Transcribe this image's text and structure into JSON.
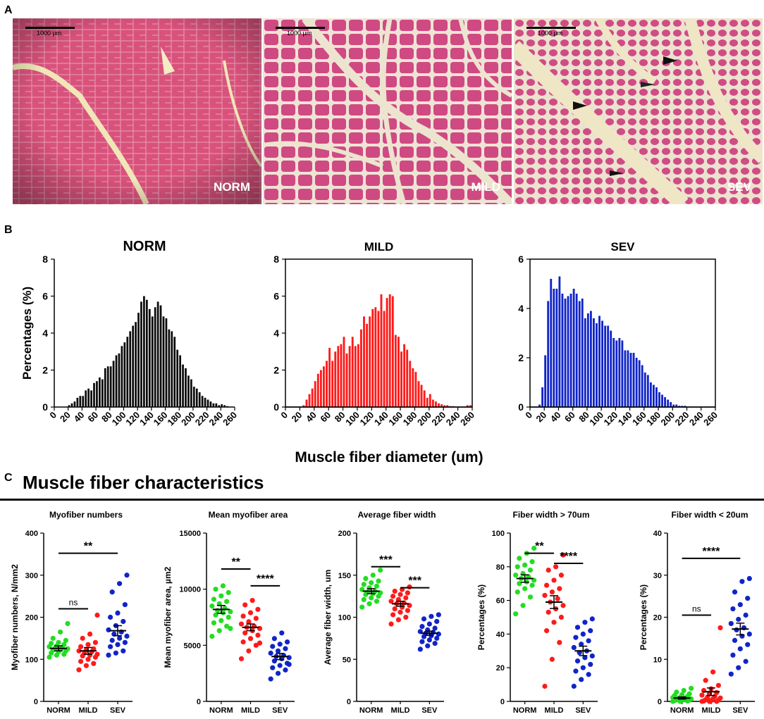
{
  "panel_a": {
    "letter": "A",
    "images": [
      {
        "label": "NORM",
        "scale": "1000 µm"
      },
      {
        "label": "MILD",
        "scale": "1000 µm"
      },
      {
        "label": "SEV",
        "scale": "1000 µm"
      }
    ]
  },
  "panel_b": {
    "letter": "B"
  },
  "panel_c": {
    "letter": "C",
    "title": "Muscle fiber characteristics"
  },
  "colors": {
    "norm": "#0b0b0b",
    "mild": "#ff1a1a",
    "sev": "#1024c8",
    "green": "#22dd22"
  },
  "chart_data": [
    {
      "type": "bar",
      "title": "NORM",
      "ylabel": "Percentages (%)",
      "xlabel": "Muscle fiber diameter (um)",
      "xlim": [
        0,
        260
      ],
      "ylim": [
        0,
        8
      ],
      "yticks": [
        0,
        2,
        4,
        6,
        8
      ],
      "xticks": [
        0,
        20,
        40,
        60,
        80,
        100,
        120,
        140,
        160,
        180,
        200,
        220,
        240,
        260
      ],
      "bin_width": 4,
      "bin_start": 20,
      "values": [
        0.1,
        0.2,
        0.3,
        0.5,
        0.6,
        0.6,
        0.9,
        1.0,
        0.9,
        1.3,
        1.4,
        1.6,
        1.5,
        2.1,
        2.2,
        2.2,
        2.5,
        2.8,
        2.9,
        3.3,
        3.5,
        3.8,
        4.1,
        4.4,
        4.6,
        5.1,
        5.7,
        6.0,
        5.8,
        5.3,
        4.9,
        5.4,
        5.7,
        5.5,
        4.9,
        4.8,
        4.2,
        4.1,
        3.8,
        3.1,
        2.8,
        2.3,
        2.1,
        1.7,
        1.5,
        1.1,
        1.0,
        0.8,
        0.6,
        0.5,
        0.4,
        0.3,
        0.2,
        0.2,
        0.1,
        0.15,
        0.1,
        0.05
      ]
    },
    {
      "type": "bar",
      "title": "MILD",
      "xlim": [
        0,
        260
      ],
      "ylim": [
        0,
        8
      ],
      "yticks": [
        0,
        2,
        4,
        6,
        8
      ],
      "xticks": [
        0,
        20,
        40,
        60,
        80,
        100,
        120,
        140,
        160,
        180,
        200,
        220,
        240,
        260
      ],
      "bin_width": 4,
      "bin_start": 24,
      "values": [
        0.1,
        0.4,
        0.7,
        1.0,
        1.4,
        1.8,
        2.0,
        2.2,
        2.5,
        3.2,
        2.5,
        3.0,
        3.3,
        3.4,
        3.8,
        2.9,
        3.3,
        3.8,
        3.3,
        3.4,
        4.2,
        4.9,
        4.5,
        4.9,
        5.3,
        5.4,
        5.2,
        6.1,
        5.2,
        5.9,
        6.1,
        6.0,
        3.9,
        3.8,
        3.0,
        3.4,
        3.1,
        2.5,
        2.1,
        1.9,
        1.4,
        1.2,
        0.9,
        0.5,
        0.7,
        0.4,
        0.3,
        0.2,
        0.15,
        0.1,
        0.1,
        0.05,
        0.05,
        0.0,
        0.0,
        0.0,
        0.0,
        0.1,
        0.1
      ]
    },
    {
      "type": "bar",
      "title": "SEV",
      "xlim": [
        0,
        260
      ],
      "ylim": [
        0,
        6
      ],
      "yticks": [
        0,
        2,
        4,
        6
      ],
      "xticks": [
        0,
        20,
        40,
        60,
        80,
        100,
        120,
        140,
        160,
        180,
        200,
        220,
        240,
        260
      ],
      "bin_width": 4,
      "bin_start": 12,
      "values": [
        0.1,
        0.8,
        2.1,
        4.3,
        5.2,
        4.8,
        4.8,
        5.3,
        4.6,
        4.4,
        4.5,
        4.6,
        4.8,
        4.6,
        4.3,
        4.4,
        3.6,
        3.8,
        3.9,
        3.6,
        3.4,
        3.7,
        3.5,
        3.3,
        3.3,
        3.1,
        2.8,
        2.7,
        2.8,
        2.7,
        2.3,
        2.3,
        2.2,
        2.2,
        2.0,
        1.9,
        1.7,
        1.4,
        1.3,
        1.0,
        0.9,
        0.8,
        0.6,
        0.5,
        0.4,
        0.3,
        0.2,
        0.1,
        0.1,
        0.05,
        0.05,
        0.05
      ]
    },
    {
      "type": "scatter",
      "title": "Myofiber numbers",
      "ylabel": "Myofiber numbers, N/mm2",
      "categories": [
        "NORM",
        "MILD",
        "SEV"
      ],
      "ylim": [
        0,
        400
      ],
      "yticks": [
        0,
        100,
        200,
        300,
        400
      ],
      "series": [
        {
          "name": "NORM",
          "mean": 126,
          "sem": 6,
          "values": [
            105,
            110,
            112,
            115,
            118,
            120,
            122,
            124,
            125,
            126,
            128,
            130,
            132,
            135,
            138,
            140,
            145,
            150,
            165,
            185
          ]
        },
        {
          "name": "MILD",
          "mean": 120,
          "sem": 8,
          "values": [
            75,
            85,
            90,
            95,
            100,
            105,
            108,
            110,
            112,
            115,
            118,
            120,
            122,
            125,
            130,
            135,
            140,
            150,
            160,
            205
          ]
        },
        {
          "name": "SEV",
          "mean": 168,
          "sem": 12,
          "values": [
            110,
            115,
            120,
            130,
            135,
            140,
            145,
            150,
            155,
            160,
            165,
            170,
            180,
            190,
            200,
            210,
            230,
            260,
            280,
            300
          ]
        }
      ],
      "annotations": [
        {
          "text": "**",
          "from": 0,
          "to": 2,
          "y": 352
        },
        {
          "text": "ns",
          "from": 0,
          "to": 1,
          "y": 220
        }
      ]
    },
    {
      "type": "scatter",
      "title": "Mean myofiber area",
      "ylabel": "Mean myofiber area, µm2",
      "categories": [
        "NORM",
        "MILD",
        "SEV"
      ],
      "ylim": [
        0,
        15000
      ],
      "yticks": [
        0,
        5000,
        10000,
        15000
      ],
      "series": [
        {
          "name": "NORM",
          "mean": 8200,
          "sem": 350,
          "values": [
            5800,
            6300,
            6700,
            7000,
            7200,
            7500,
            7700,
            7900,
            8000,
            8100,
            8300,
            8500,
            8700,
            8900,
            9100,
            9400,
            9700,
            10000,
            10300,
            6500
          ]
        },
        {
          "name": "MILD",
          "mean": 6600,
          "sem": 300,
          "values": [
            3800,
            4500,
            5000,
            5300,
            5600,
            5900,
            6100,
            6300,
            6500,
            6600,
            6700,
            6900,
            7100,
            7400,
            7600,
            7900,
            8200,
            8600,
            9000,
            5200
          ]
        },
        {
          "name": "SEV",
          "mean": 4000,
          "sem": 280,
          "values": [
            2000,
            2500,
            2800,
            3000,
            3200,
            3400,
            3600,
            3800,
            3900,
            4000,
            4100,
            4300,
            4500,
            4700,
            4900,
            5100,
            5300,
            5600,
            6100,
            3300
          ]
        }
      ],
      "annotations": [
        {
          "text": "**",
          "from": 0,
          "to": 1,
          "y": 11800
        },
        {
          "text": "****",
          "from": 1,
          "to": 2,
          "y": 10300
        }
      ]
    },
    {
      "type": "scatter",
      "title": "Average fiber width",
      "ylabel": "Average fiber width, um",
      "categories": [
        "NORM",
        "MILD",
        "SEV"
      ],
      "ylim": [
        0,
        200
      ],
      "yticks": [
        0,
        50,
        100,
        150,
        200
      ],
      "series": [
        {
          "name": "NORM",
          "mean": 131,
          "sem": 3,
          "values": [
            112,
            116,
            119,
            121,
            123,
            125,
            127,
            128,
            129,
            130,
            131,
            133,
            135,
            137,
            139,
            141,
            143,
            146,
            150,
            156
          ]
        },
        {
          "name": "MILD",
          "mean": 116,
          "sem": 3,
          "values": [
            92,
            97,
            100,
            103,
            106,
            108,
            110,
            112,
            114,
            116,
            117,
            119,
            121,
            123,
            125,
            127,
            129,
            131,
            133,
            136
          ]
        },
        {
          "name": "SEV",
          "mean": 81,
          "sem": 2.5,
          "values": [
            62,
            66,
            69,
            71,
            73,
            75,
            77,
            78,
            80,
            81,
            82,
            83,
            85,
            87,
            89,
            92,
            95,
            98,
            101,
            103
          ]
        }
      ],
      "annotations": [
        {
          "text": "***",
          "from": 0,
          "to": 1,
          "y": 160
        },
        {
          "text": "***",
          "from": 1,
          "to": 2,
          "y": 135
        }
      ]
    },
    {
      "type": "scatter",
      "title": "Fiber width > 70um",
      "ylabel": "Percentages (%)",
      "categories": [
        "NORM",
        "MILD",
        "SEV"
      ],
      "ylim": [
        0,
        100
      ],
      "yticks": [
        0,
        20,
        40,
        60,
        80,
        100
      ],
      "series": [
        {
          "name": "NORM",
          "mean": 73,
          "sem": 2.2,
          "values": [
            52,
            57,
            62,
            65,
            67,
            69,
            70,
            71,
            72,
            73,
            74,
            75,
            76,
            78,
            80,
            81,
            83,
            85,
            88,
            91
          ]
        },
        {
          "name": "MILD",
          "mean": 59,
          "sem": 3.8,
          "values": [
            9,
            25,
            35,
            42,
            47,
            50,
            53,
            55,
            57,
            59,
            61,
            63,
            65,
            67,
            69,
            72,
            75,
            78,
            80,
            87
          ]
        },
        {
          "name": "SEV",
          "mean": 30,
          "sem": 2.8,
          "values": [
            9,
            13,
            16,
            18,
            20,
            22,
            24,
            26,
            27,
            29,
            30,
            32,
            34,
            36,
            38,
            40,
            42,
            44,
            47,
            49
          ]
        }
      ],
      "annotations": [
        {
          "text": "**",
          "from": 0,
          "to": 1,
          "y": 88
        },
        {
          "text": "****",
          "from": 1,
          "to": 2,
          "y": 82
        }
      ]
    },
    {
      "type": "scatter",
      "title": "Fiber width < 20um",
      "ylabel": "Percentages (%)",
      "categories": [
        "NORM",
        "MILD",
        "SEV"
      ],
      "ylim": [
        0,
        40
      ],
      "yticks": [
        0,
        10,
        20,
        30,
        40
      ],
      "series": [
        {
          "name": "NORM",
          "mean": 0.8,
          "sem": 0.25,
          "values": [
            0,
            0,
            0.1,
            0.2,
            0.2,
            0.3,
            0.4,
            0.5,
            0.6,
            0.7,
            0.8,
            0.9,
            1.0,
            1.2,
            1.4,
            1.6,
            1.8,
            2.2,
            2.6,
            3.1
          ]
        },
        {
          "name": "MILD",
          "mean": 2.3,
          "sem": 0.9,
          "values": [
            0,
            0,
            0,
            0.1,
            0.2,
            0.3,
            0.4,
            0.6,
            0.8,
            1.0,
            1.2,
            1.5,
            1.8,
            2.1,
            2.6,
            3.0,
            3.8,
            5.0,
            7.0,
            17.5
          ]
        },
        {
          "name": "SEV",
          "mean": 17.2,
          "sem": 1.4,
          "values": [
            6.5,
            8,
            9.5,
            11,
            12.5,
            13.5,
            14.5,
            15.5,
            16,
            17,
            17.5,
            18.5,
            19.5,
            20.5,
            22,
            23,
            24.5,
            26,
            28.5,
            29.2
          ]
        }
      ],
      "annotations": [
        {
          "text": "****",
          "from": 0,
          "to": 2,
          "y": 34
        },
        {
          "text": "ns",
          "from": 0,
          "to": 1,
          "y": 20.5
        }
      ]
    }
  ]
}
